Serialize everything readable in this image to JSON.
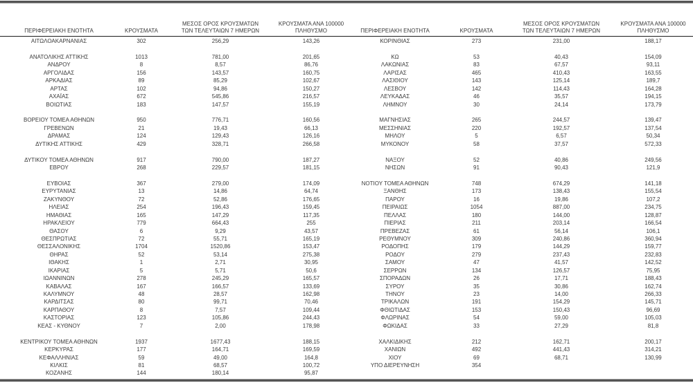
{
  "document": {
    "colors": {
      "text": "#3a3a3a",
      "thick_rule": "#555555",
      "header_underline": "#1a1a1a"
    },
    "columns": {
      "region": "ΠΕΡΙΦΕΡΕΙΑΚΗ ΕΝΟΤΗΤΑ",
      "cases": "ΚΡΟΥΣΜΑΤΑ",
      "avg7_line1": "ΜΕΣΟΣ ΟΡΟΣ ΚΡΟΥΣΜΑΤΩΝ",
      "avg7_line2": "ΤΩΝ ΤΕΛΕΥΤΑΙΩΝ 7 ΗΜΕΡΩΝ",
      "per100k_line1": "ΚΡΟΥΣΜΑΤΑ ΑΝΑ 100000",
      "per100k_line2": "ΠΛΗΘΥΣΜΟ"
    },
    "left_rows": [
      [
        "ΑΙΤΩΛΟΑΚΑΡΝΑΝΙΑΣ",
        "302",
        "256,29",
        "143,26"
      ],
      null,
      [
        "ΑΝΑΤΟΛΙΚΗΣ ΑΤΤΙΚΗΣ",
        "1013",
        "781,00",
        "201,65"
      ],
      [
        "ΑΝΔΡΟΥ",
        "8",
        "8,57",
        "86,76"
      ],
      [
        "ΑΡΓΟΛΙΔΑΣ",
        "156",
        "143,57",
        "160,75"
      ],
      [
        "ΑΡΚΑΔΙΑΣ",
        "89",
        "85,29",
        "102,67"
      ],
      [
        "ΑΡΤΑΣ",
        "102",
        "94,86",
        "150,27"
      ],
      [
        "ΑΧΑΪΑΣ",
        "672",
        "545,86",
        "216,57"
      ],
      [
        "ΒΟΙΩΤΙΑΣ",
        "183",
        "147,57",
        "155,19"
      ],
      null,
      [
        "ΒΟΡΕΙΟΥ ΤΟΜΕΑ ΑΘΗΝΩΝ",
        "950",
        "776,71",
        "160,56"
      ],
      [
        "ΓΡΕΒΕΝΩΝ",
        "21",
        "19,43",
        "66,13"
      ],
      [
        "ΔΡΑΜΑΣ",
        "124",
        "129,43",
        "126,16"
      ],
      [
        "ΔΥΤΙΚΗΣ ΑΤΤΙΚΗΣ",
        "429",
        "328,71",
        "266,58"
      ],
      null,
      [
        "ΔΥΤΙΚΟΥ ΤΟΜΕΑ ΑΘΗΝΩΝ",
        "917",
        "790,00",
        "187,27"
      ],
      [
        "ΕΒΡΟΥ",
        "268",
        "229,57",
        "181,15"
      ],
      null,
      [
        "ΕΥΒΟΙΑΣ",
        "367",
        "279,00",
        "174,09"
      ],
      [
        "ΕΥΡΥΤΑΝΙΑΣ",
        "13",
        "14,86",
        "64,74"
      ],
      [
        "ΖΑΚΥΝΘΟΥ",
        "72",
        "52,86",
        "176,65"
      ],
      [
        "ΗΛΕΙΑΣ",
        "254",
        "196,43",
        "159,45"
      ],
      [
        "ΗΜΑΘΙΑΣ",
        "165",
        "147,29",
        "117,35"
      ],
      [
        "ΗΡΑΚΛΕΙΟΥ",
        "779",
        "664,43",
        "255"
      ],
      [
        "ΘΑΣΟΥ",
        "6",
        "9,29",
        "43,57"
      ],
      [
        "ΘΕΣΠΡΩΤΙΑΣ",
        "72",
        "55,71",
        "165,19"
      ],
      [
        "ΘΕΣΣΑΛΟΝΙΚΗΣ",
        "1704",
        "1520,86",
        "153,47"
      ],
      [
        "ΘΗΡΑΣ",
        "52",
        "53,14",
        "275,38"
      ],
      [
        "ΙΘΑΚΗΣ",
        "1",
        "2,71",
        "30,95"
      ],
      [
        "ΙΚΑΡΙΑΣ",
        "5",
        "5,71",
        "50,6"
      ],
      [
        "ΙΩΑΝΝΙΝΩΝ",
        "278",
        "245,29",
        "165,57"
      ],
      [
        "ΚΑΒΑΛΑΣ",
        "167",
        "166,57",
        "133,69"
      ],
      [
        "ΚΑΛΥΜΝΟΥ",
        "48",
        "28,57",
        "162,98"
      ],
      [
        "ΚΑΡΔΙΤΣΑΣ",
        "80",
        "99,71",
        "70,46"
      ],
      [
        "ΚΑΡΠΑΘΟΥ",
        "8",
        "7,57",
        "109,44"
      ],
      [
        "ΚΑΣΤΟΡΙΑΣ",
        "123",
        "105,86",
        "244,43"
      ],
      [
        "ΚΕΑΣ - ΚΥΘΝΟΥ",
        "7",
        "2,00",
        "178,98"
      ],
      null,
      [
        "ΚΕΝΤΡΙΚΟΥ ΤΟΜΕΑ ΑΘΗΝΩΝ",
        "1937",
        "1677,43",
        "188,15"
      ],
      [
        "ΚΕΡΚΥΡΑΣ",
        "177",
        "164,71",
        "169,59"
      ],
      [
        "ΚΕΦΑΛΛΗΝΙΑΣ",
        "59",
        "49,00",
        "164,8"
      ],
      [
        "ΚΙΛΚΙΣ",
        "81",
        "68,57",
        "100,72"
      ],
      [
        "ΚΟΖΑΝΗΣ",
        "144",
        "180,14",
        "95,87"
      ]
    ],
    "right_rows": [
      [
        "ΚΟΡΙΝΘΙΑΣ",
        "273",
        "231,00",
        "188,17"
      ],
      null,
      [
        "ΚΩ",
        "53",
        "40,43",
        "154,09"
      ],
      [
        "ΛΑΚΩΝΙΑΣ",
        "83",
        "67,57",
        "93,11"
      ],
      [
        "ΛΑΡΙΣΑΣ",
        "465",
        "410,43",
        "163,55"
      ],
      [
        "ΛΑΣΙΘΙΟΥ",
        "143",
        "125,14",
        "189,7"
      ],
      [
        "ΛΕΣΒΟΥ",
        "142",
        "114,43",
        "164,28"
      ],
      [
        "ΛΕΥΚΑΔΑΣ",
        "46",
        "35,57",
        "194,15"
      ],
      [
        "ΛΗΜΝΟΥ",
        "30",
        "24,14",
        "173,79"
      ],
      null,
      [
        "ΜΑΓΝΗΣΙΑΣ",
        "265",
        "244,57",
        "139,47"
      ],
      [
        "ΜΕΣΣΗΝΙΑΣ",
        "220",
        "192,57",
        "137,54"
      ],
      [
        "ΜΗΛΟΥ",
        "5",
        "6,57",
        "50,34"
      ],
      [
        "ΜΥΚΟΝΟΥ",
        "58",
        "37,57",
        "572,33"
      ],
      null,
      [
        "ΝΑΞΟΥ",
        "52",
        "40,86",
        "249,56"
      ],
      [
        "ΝΗΣΩΝ",
        "91",
        "90,43",
        "121,9"
      ],
      null,
      [
        "ΝΟΤΙΟΥ ΤΟΜΕΑ ΑΘΗΝΩΝ",
        "748",
        "674,29",
        "141,18"
      ],
      [
        "ΞΑΝΘΗΣ",
        "173",
        "138,43",
        "155,54"
      ],
      [
        "ΠΑΡΟΥ",
        "16",
        "19,86",
        "107,2"
      ],
      [
        "ΠΕΙΡΑΙΩΣ",
        "1054",
        "887,00",
        "234,75"
      ],
      [
        "ΠΕΛΛΑΣ",
        "180",
        "144,00",
        "128,87"
      ],
      [
        "ΠΙΕΡΙΑΣ",
        "211",
        "203,14",
        "166,54"
      ],
      [
        "ΠΡΕΒΕΖΑΣ",
        "61",
        "56,14",
        "106,1"
      ],
      [
        "ΡΕΘΥΜΝΟΥ",
        "309",
        "240,86",
        "360,94"
      ],
      [
        "ΡΟΔΟΠΗΣ",
        "179",
        "144,29",
        "159,77"
      ],
      [
        "ΡΟΔΟΥ",
        "279",
        "237,43",
        "232,83"
      ],
      [
        "ΣΑΜΟΥ",
        "47",
        "41,57",
        "142,52"
      ],
      [
        "ΣΕΡΡΩΝ",
        "134",
        "126,57",
        "75,95"
      ],
      [
        "ΣΠΟΡΑΔΩΝ",
        "26",
        "17,71",
        "188,43"
      ],
      [
        "ΣΥΡΟΥ",
        "35",
        "30,86",
        "162,74"
      ],
      [
        "ΤΗΝΟΥ",
        "23",
        "14,00",
        "266,33"
      ],
      [
        "ΤΡΙΚΑΛΩΝ",
        "191",
        "154,29",
        "145,71"
      ],
      [
        "ΦΘΙΩΤΙΔΑΣ",
        "153",
        "150,43",
        "96,69"
      ],
      [
        "ΦΛΩΡΙΝΑΣ",
        "54",
        "59,00",
        "105,03"
      ],
      [
        "ΦΩΚΙΔΑΣ",
        "33",
        "27,29",
        "81,8"
      ],
      null,
      [
        "ΧΑΛΚΙΔΙΚΗΣ",
        "212",
        "162,71",
        "200,17"
      ],
      [
        "ΧΑΝΙΩΝ",
        "492",
        "441,43",
        "314,21"
      ],
      [
        "ΧΙΟΥ",
        "69",
        "68,71",
        "130,99"
      ],
      [
        "ΥΠΟ ΔΙΕΡΕΥΝΗΣΗ",
        "354",
        "",
        ""
      ],
      null
    ]
  }
}
